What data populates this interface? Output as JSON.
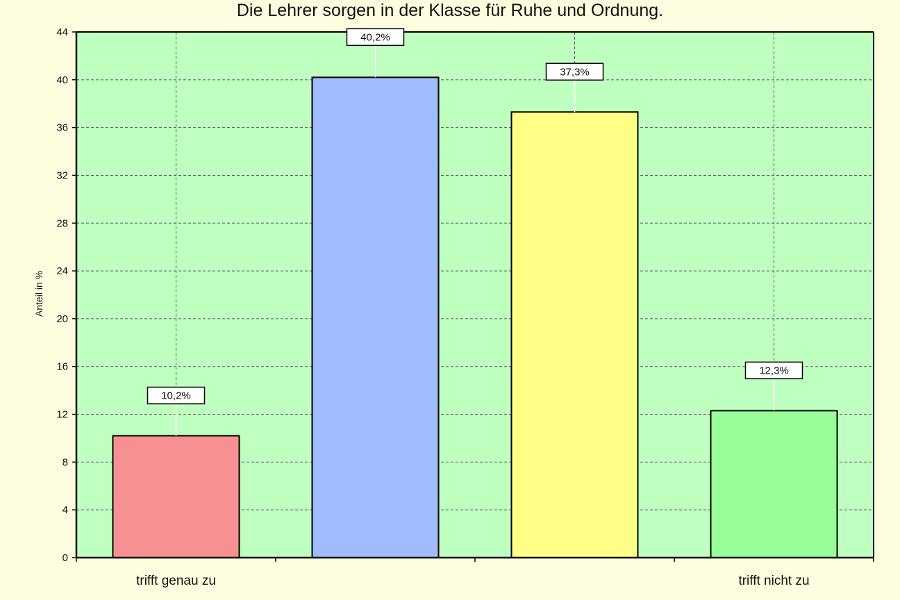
{
  "chart_data": {
    "type": "bar",
    "title": "Die Lehrer sorgen in der Klasse für Ruhe und Ordnung.",
    "ylabel": "Anteil in %",
    "xlabel": "",
    "ylim": [
      0,
      44
    ],
    "yticks": [
      "0",
      "4",
      "8",
      "12",
      "16",
      "20",
      "24",
      "28",
      "32",
      "36",
      "40",
      "44"
    ],
    "grid": true,
    "categories": [
      "trifft genau zu",
      "",
      "",
      "trifft nicht zu"
    ],
    "values": [
      10.2,
      40.2,
      37.3,
      12.3
    ],
    "data_labels": [
      "10,2%",
      "40,2%",
      "37,3%",
      "12,3%"
    ],
    "colors": [
      "#f79090",
      "#a0bcff",
      "#ffff88",
      "#98ff98"
    ],
    "plot_background": "#bfffbf"
  }
}
